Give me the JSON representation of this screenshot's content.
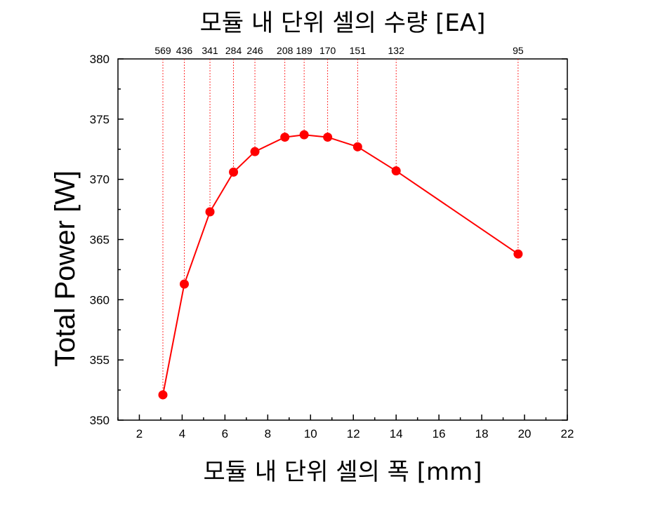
{
  "chart_data": {
    "type": "line",
    "title": "모듈 내 단위 셀의 수량 [EA]",
    "xlabel": "모듈 내 단위 셀의 폭 [mm]",
    "ylabel": "Total Power [W]",
    "xlim": [
      1,
      22
    ],
    "ylim": [
      350,
      380
    ],
    "xticks": [
      2,
      4,
      6,
      8,
      10,
      12,
      14,
      16,
      18,
      20,
      22
    ],
    "yticks": [
      350,
      355,
      360,
      365,
      370,
      375,
      380
    ],
    "grid": false,
    "line_color": "#ff0000",
    "marker_color": "#ff0000",
    "series": [
      {
        "x": [
          3.1,
          4.1,
          5.3,
          6.4,
          7.4,
          8.8,
          9.7,
          10.8,
          12.2,
          14.0,
          19.7
        ],
        "y": [
          352.1,
          361.3,
          367.3,
          370.6,
          372.3,
          373.5,
          373.7,
          373.5,
          372.7,
          370.7,
          363.8
        ]
      }
    ],
    "top_labels": [
      "569",
      "436",
      "341",
      "284",
      "246",
      "208",
      "189",
      "170",
      "151",
      "132",
      "95"
    ]
  }
}
